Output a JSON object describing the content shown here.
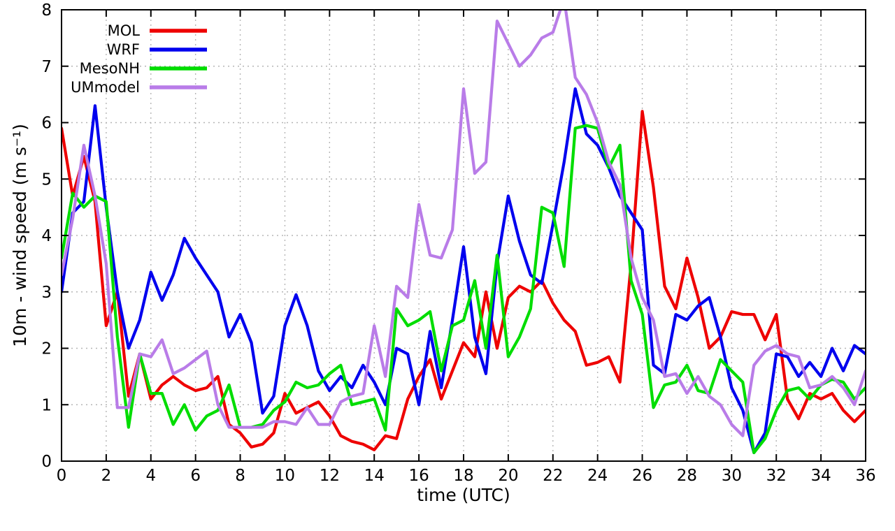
{
  "page": {
    "background": "#ffffff"
  },
  "chart_data": {
    "type": "line",
    "title": "",
    "xlabel": "time (UTC)",
    "ylabel": "10m - wind speed  (m s⁻¹)",
    "xlim": [
      0,
      36
    ],
    "ylim": [
      0,
      8
    ],
    "xticks": [
      0,
      2,
      4,
      6,
      8,
      10,
      12,
      14,
      16,
      18,
      20,
      22,
      24,
      26,
      28,
      30,
      32,
      34,
      36
    ],
    "yticks": [
      0,
      1,
      2,
      3,
      4,
      5,
      6,
      7,
      8
    ],
    "grid": true,
    "grid_style": "dotted",
    "legend_position": "top-left",
    "x": [
      0,
      0.5,
      1,
      1.5,
      2,
      2.5,
      3,
      3.5,
      4,
      4.5,
      5,
      5.5,
      6,
      6.5,
      7,
      7.5,
      8,
      8.5,
      9,
      9.5,
      10,
      10.5,
      11,
      11.5,
      12,
      12.5,
      13,
      13.5,
      14,
      14.5,
      15,
      15.5,
      16,
      16.5,
      17,
      17.5,
      18,
      18.5,
      19,
      19.5,
      20,
      20.5,
      21,
      21.5,
      22,
      22.5,
      23,
      23.5,
      24,
      24.5,
      25,
      25.5,
      26,
      26.5,
      27,
      27.5,
      28,
      28.5,
      29,
      29.5,
      30,
      30.5,
      31,
      31.5,
      32,
      32.5,
      33,
      33.5,
      34,
      34.5,
      35,
      35.5,
      36
    ],
    "series": [
      {
        "name": "MOL",
        "color": "#ee0000",
        "values": [
          5.9,
          4.7,
          5.4,
          4.6,
          2.4,
          3.0,
          1.15,
          1.9,
          1.1,
          1.35,
          1.5,
          1.35,
          1.25,
          1.3,
          1.5,
          0.65,
          0.5,
          0.25,
          0.3,
          0.5,
          1.2,
          0.85,
          0.95,
          1.05,
          0.8,
          0.45,
          0.35,
          0.3,
          0.2,
          0.45,
          0.4,
          1.1,
          1.5,
          1.8,
          1.1,
          1.6,
          2.1,
          1.85,
          3.0,
          2.0,
          2.9,
          3.1,
          3.0,
          3.2,
          2.8,
          2.5,
          2.3,
          1.7,
          1.75,
          1.85,
          1.4,
          3.5,
          6.2,
          4.85,
          3.1,
          2.7,
          3.6,
          2.9,
          2.0,
          2.2,
          2.65,
          2.6,
          2.6,
          2.15,
          2.6,
          1.1,
          0.75,
          1.2,
          1.1,
          1.2,
          0.9,
          0.7,
          0.9
        ]
      },
      {
        "name": "WRF",
        "color": "#0000ee",
        "values": [
          3.0,
          4.4,
          4.6,
          6.3,
          4.5,
          3.0,
          2.0,
          2.5,
          3.35,
          2.85,
          3.3,
          3.95,
          3.6,
          3.3,
          3.0,
          2.2,
          2.6,
          2.1,
          0.85,
          1.15,
          2.4,
          2.95,
          2.4,
          1.6,
          1.25,
          1.5,
          1.3,
          1.7,
          1.4,
          1.0,
          2.0,
          1.9,
          1.0,
          2.3,
          1.3,
          2.5,
          3.8,
          2.2,
          1.55,
          3.5,
          4.7,
          3.9,
          3.3,
          3.15,
          4.2,
          5.3,
          6.6,
          5.8,
          5.6,
          5.2,
          4.7,
          4.4,
          4.1,
          1.7,
          1.55,
          2.6,
          2.5,
          2.75,
          2.9,
          2.2,
          1.3,
          0.9,
          0.15,
          0.5,
          1.9,
          1.85,
          1.5,
          1.75,
          1.5,
          2.0,
          1.6,
          2.05,
          1.9
        ]
      },
      {
        "name": "MesoNH",
        "color": "#00dd00",
        "values": [
          3.6,
          4.75,
          4.5,
          4.7,
          4.6,
          2.2,
          0.6,
          1.9,
          1.2,
          1.2,
          0.65,
          1.0,
          0.55,
          0.8,
          0.9,
          1.35,
          0.6,
          0.6,
          0.65,
          0.9,
          1.05,
          1.4,
          1.3,
          1.35,
          1.55,
          1.7,
          1.0,
          1.05,
          1.1,
          0.55,
          2.7,
          2.4,
          2.5,
          2.65,
          1.6,
          2.4,
          2.5,
          3.2,
          2.0,
          3.65,
          1.85,
          2.2,
          2.7,
          4.5,
          4.4,
          3.45,
          5.9,
          5.95,
          5.9,
          5.2,
          5.6,
          3.2,
          2.6,
          0.95,
          1.35,
          1.4,
          1.7,
          1.25,
          1.2,
          1.8,
          1.6,
          1.4,
          0.15,
          0.4,
          0.9,
          1.25,
          1.3,
          1.1,
          1.35,
          1.45,
          1.4,
          1.1,
          1.3
        ]
      },
      {
        "name": "UMmodel",
        "color": "#b97ce8",
        "values": [
          3.3,
          4.3,
          5.6,
          4.7,
          3.5,
          0.95,
          0.95,
          1.9,
          1.85,
          2.15,
          1.55,
          1.65,
          1.8,
          1.95,
          1.0,
          0.6,
          0.6,
          0.6,
          0.6,
          0.7,
          0.7,
          0.65,
          0.95,
          0.65,
          0.65,
          1.05,
          1.15,
          1.2,
          2.4,
          1.5,
          3.1,
          2.9,
          4.55,
          3.65,
          3.6,
          4.1,
          6.6,
          5.1,
          5.3,
          7.8,
          7.4,
          7.0,
          7.2,
          7.5,
          7.6,
          8.2,
          6.8,
          6.5,
          6.0,
          5.3,
          4.9,
          3.6,
          2.9,
          2.5,
          1.5,
          1.55,
          1.2,
          1.5,
          1.15,
          1.0,
          0.65,
          0.45,
          1.7,
          1.95,
          2.05,
          1.9,
          1.85,
          1.3,
          1.35,
          1.5,
          1.3,
          1.0,
          1.6
        ]
      }
    ]
  }
}
